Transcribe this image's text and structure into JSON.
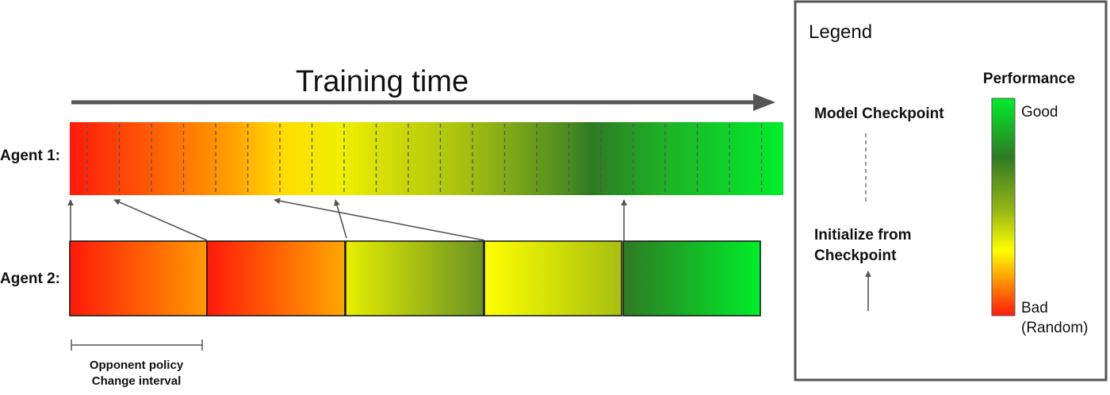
{
  "diagram": {
    "title": "Training time",
    "agent1_label": "Agent 1:",
    "agent2_label": "Agent 2:",
    "interval_label_line1": "Opponent policy",
    "interval_label_line2": "Change interval",
    "agent1_checkpoint_count": 22,
    "agent2_segment_count": 5
  },
  "legend": {
    "title": "Legend",
    "checkpoint_label": "Model Checkpoint",
    "init_label_line1": "Initialize from",
    "init_label_line2": "Checkpoint",
    "performance_title": "Performance",
    "good_label": "Good",
    "bad_label_line1": "Bad",
    "bad_label_line2": "(Random)"
  },
  "colors": {
    "bad": "#ff1a0a",
    "mid_orange": "#ff9a00",
    "mid_yellow": "#ffff00",
    "dark_green": "#2e7a22",
    "good": "#00ee2a",
    "arrow": "#555555",
    "frame": "#555555"
  }
}
